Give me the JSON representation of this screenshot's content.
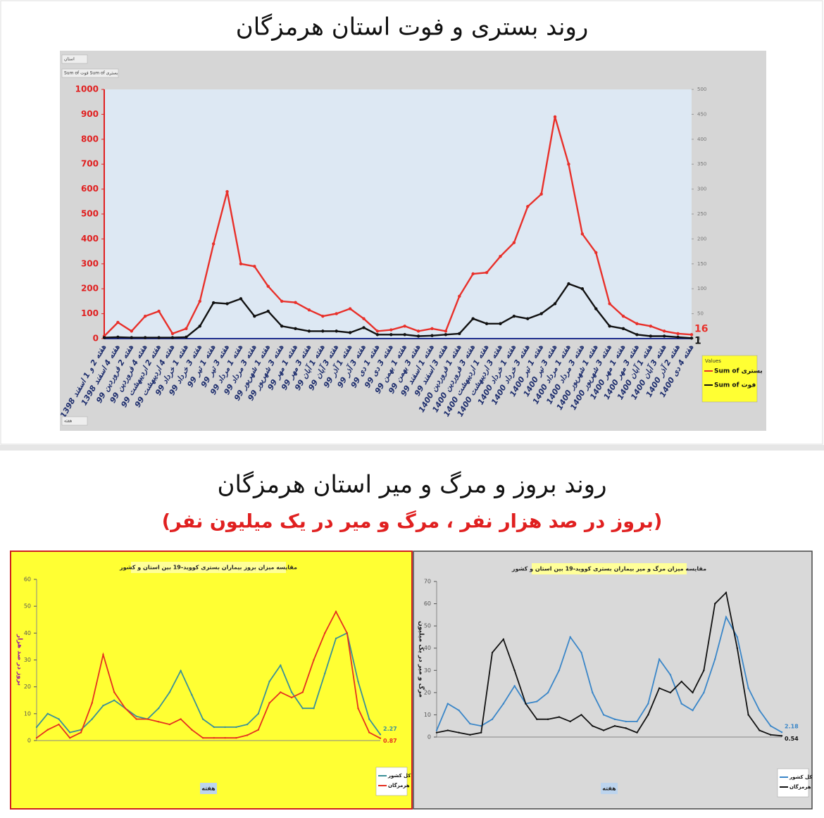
{
  "section": {
    "title": "روند بروز و مرگ و میر استان هرمزگان",
    "subtitle": "(بروز در صد هزار نفر ، مرگ و میر در یک میلیون نفر)"
  },
  "chart_data": [
    {
      "type": "line",
      "title": "روند بستری و فوت استان هرمزگان",
      "filters": [
        "استان",
        "Sum of فوت  Sum of بستری",
        "هفته"
      ],
      "legend_title": "Values",
      "legend": "right",
      "categories": [
        "هفته 2 و 1 اسفند 1398",
        "هفته 4 اسفند 1398",
        "هفته 2 فروردین 99",
        "هفته 4 فروردین 99",
        "هفته 2 اردیبهشت 99",
        "هفته 4 اردیبهشت 99",
        "هفته 1 خرداد 99",
        "هفته 3 خرداد 99",
        "هفته 1 تیر 99",
        "هفته 3 تیر 99",
        "هفته 1 مرداد 99",
        "هفته 3 مرداد 99",
        "هفته 1 شهریور 99",
        "هفته 3 شهریور 99",
        "هفته 1 مهر 99",
        "هفته 3 مهر 99",
        "هفته 1 آبان 99",
        "هفته 3 آبان 99",
        "هفته 1 آذر 99",
        "هفته 3 آذر 99",
        "هفته 1 دی 99",
        "هفته 3 دی 99",
        "هفته 1 بهمن 99",
        "هفته 3 بهمن 99",
        "هفته 1 اسفند 99",
        "هفته 3 اسفند 99",
        "هفته 1 فروردین 1400",
        "هفته 3 فروردین 1400",
        "هفته 1 اردیبهشت 1400",
        "هفته 3 اردیبهشت 1400",
        "هفته 1 خرداد 1400",
        "هفته 3 خرداد 1400",
        "هفته 1 تیر 1400",
        "هفته 3 تیر 1400",
        "هفته 1 مرداد 1400",
        "هفته 3 مرداد 1400",
        "هفته 1 شهریور 1400",
        "هفته 3 شهریور 1400",
        "هفته 1 مهر 1400",
        "هفته 3 مهر 1400",
        "هفته 1 آبان 1400",
        "هفته 3 آبان 1400",
        "هفته 2 آذر 1400",
        "هفته 4 دی 1400"
      ],
      "series": [
        {
          "name": "Sum of بستری",
          "color": "#e8302a",
          "values": [
            10,
            65,
            30,
            90,
            110,
            20,
            40,
            150,
            380,
            590,
            300,
            290,
            210,
            150,
            145,
            115,
            90,
            100,
            120,
            80,
            30,
            35,
            50,
            30,
            40,
            30,
            170,
            260,
            265,
            330,
            385,
            530,
            580,
            890,
            700,
            420,
            345,
            140,
            90,
            60,
            50,
            30,
            20,
            16
          ]
        },
        {
          "name": "Sum of فوت",
          "color": "#111111",
          "axis": "y2",
          "values": [
            2,
            3,
            2,
            2,
            2,
            2,
            3,
            25,
            72,
            70,
            80,
            45,
            55,
            25,
            20,
            15,
            15,
            15,
            12,
            22,
            8,
            8,
            8,
            5,
            6,
            8,
            10,
            40,
            30,
            30,
            45,
            40,
            50,
            70,
            110,
            100,
            60,
            25,
            20,
            8,
            5,
            5,
            3,
            1
          ]
        }
      ],
      "ylim": [
        0,
        1000
      ],
      "yticks": [
        0,
        100,
        200,
        300,
        400,
        500,
        600,
        700,
        800,
        900,
        1000
      ],
      "y2lim": [
        0,
        500
      ],
      "y2ticks": [
        0,
        50,
        100,
        150,
        200,
        250,
        300,
        350,
        400,
        450,
        500
      ]
    },
    {
      "type": "line",
      "title": "مقایسه میزان بروز بیماران بستری کووید-19 بین استان و کشور",
      "ylabel": "بروز در صد هزار",
      "xlabel": "هفته",
      "legend": "right",
      "categories": [
        null,
        null,
        null,
        null,
        null,
        null,
        null,
        null,
        null,
        null,
        null,
        null,
        null,
        null,
        null,
        null,
        null,
        null,
        null,
        null,
        null,
        null,
        null,
        null,
        null,
        null,
        null,
        null,
        null,
        null,
        null,
        null
      ],
      "series": [
        {
          "name": "کل کشور",
          "color": "#3a9098",
          "values": [
            5,
            10,
            8,
            3,
            4,
            8,
            13,
            15,
            12,
            9,
            8,
            12,
            18,
            26,
            17,
            8,
            5,
            5,
            5,
            6,
            10,
            22,
            28,
            18,
            12,
            12,
            25,
            38,
            40,
            22,
            8,
            2.27
          ]
        },
        {
          "name": "هرمزگان",
          "color": "#e53020",
          "values": [
            1,
            4,
            6,
            1,
            3,
            14,
            32,
            18,
            12,
            8,
            8,
            7,
            6,
            8,
            4,
            1,
            1,
            1,
            1,
            2,
            4,
            14,
            18,
            16,
            18,
            30,
            40,
            48,
            40,
            12,
            3,
            0.87
          ]
        }
      ],
      "ylim": [
        0,
        60
      ],
      "yticks": [
        0,
        10,
        20,
        30,
        40,
        50,
        60
      ]
    },
    {
      "type": "line",
      "title": "مقایسه میزان مرگ و میر بیماران بستری کووید-19 بین استان و کشور",
      "ylabel": "مرگ و میر در یک میلیون",
      "xlabel": "هفته",
      "legend": "right",
      "categories": [
        null,
        null,
        null,
        null,
        null,
        null,
        null,
        null,
        null,
        null,
        null,
        null,
        null,
        null,
        null,
        null,
        null,
        null,
        null,
        null,
        null,
        null,
        null,
        null,
        null,
        null,
        null,
        null,
        null,
        null,
        null,
        null
      ],
      "series": [
        {
          "name": "کل کشور",
          "color": "#3a86c8",
          "values": [
            3,
            15,
            12,
            6,
            5,
            8,
            15,
            23,
            15,
            16,
            20,
            30,
            45,
            38,
            20,
            10,
            8,
            7,
            7,
            15,
            35,
            28,
            15,
            12,
            20,
            35,
            54,
            45,
            22,
            12,
            5,
            2.18
          ]
        },
        {
          "name": "هرمزگان",
          "color": "#111111",
          "values": [
            2,
            3,
            2,
            1,
            2,
            38,
            44,
            30,
            15,
            8,
            8,
            9,
            7,
            10,
            5,
            3,
            5,
            4,
            2,
            10,
            22,
            20,
            25,
            20,
            30,
            60,
            65,
            40,
            10,
            3,
            1,
            0.54
          ]
        }
      ],
      "ylim": [
        0,
        70
      ],
      "yticks": [
        0,
        10,
        20,
        30,
        40,
        50,
        60,
        70
      ]
    }
  ]
}
